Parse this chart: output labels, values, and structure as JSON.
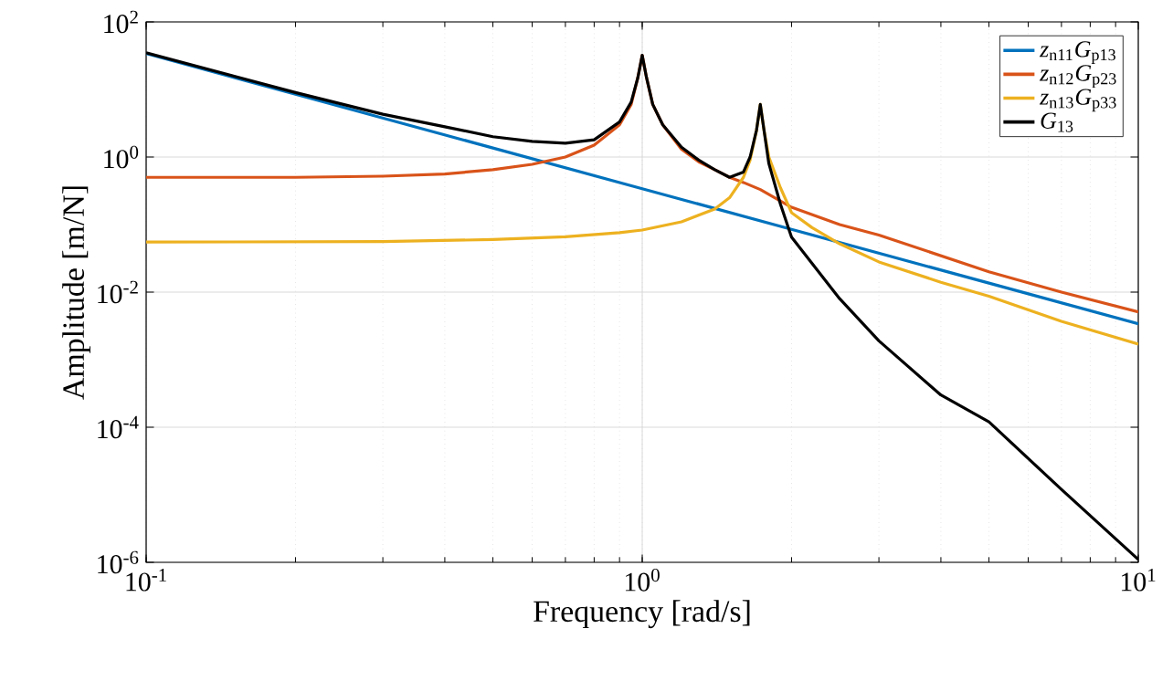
{
  "chart_data": {
    "type": "line",
    "xlabel": "Frequency [rad/s]",
    "ylabel": "Amplitude [m/N]",
    "log": "xy",
    "grid": true,
    "legend": "top right",
    "line_style": "solid",
    "marker": "none",
    "xlim": [
      0.1,
      10
    ],
    "ylim": [
      1e-06,
      100
    ],
    "xticks": [
      {
        "value": 0.1,
        "label": "10$^{-1}$"
      },
      {
        "value": 1,
        "label": "10$^{0}$"
      },
      {
        "value": 10,
        "label": "10$^{1}$"
      }
    ],
    "yticks": [
      {
        "value": 1e-06,
        "label": "10$^{-6}$"
      },
      {
        "value": 0.0001,
        "label": "10$^{-4}$"
      },
      {
        "value": 0.01,
        "label": "10$^{-2}$"
      },
      {
        "value": 1,
        "label": "10$^{0}$"
      },
      {
        "value": 100,
        "label": "10$^{2}$"
      }
    ],
    "series": [
      {
        "name": "*z*$_{n11}$*G*$_{p13}$",
        "color": "#0072bd",
        "x": [
          0.1,
          0.2,
          0.5,
          1,
          2,
          5,
          10
        ],
        "values": [
          34,
          8.5,
          1.36,
          0.34,
          0.085,
          0.0136,
          0.0034
        ]
      },
      {
        "name": "*z*$_{n12}$*G*$_{p23}$",
        "color": "#d95319",
        "x": [
          0.1,
          0.2,
          0.3,
          0.4,
          0.5,
          0.6,
          0.7,
          0.8,
          0.9,
          0.95,
          0.98,
          1.0,
          1.02,
          1.05,
          1.1,
          1.2,
          1.3,
          1.4,
          1.5,
          1.6,
          1.73,
          1.85,
          2.0,
          2.5,
          3,
          5,
          7,
          10
        ],
        "values": [
          0.5,
          0.5,
          0.52,
          0.56,
          0.65,
          0.78,
          1.0,
          1.5,
          3.0,
          6,
          15,
          32,
          15,
          6,
          3.0,
          1.3,
          0.85,
          0.65,
          0.5,
          0.42,
          0.33,
          0.25,
          0.18,
          0.1,
          0.07,
          0.02,
          0.01,
          0.0051
        ]
      },
      {
        "name": "*z*$_{n13}$*G*$_{p33}$",
        "color": "#edb120",
        "x": [
          0.1,
          0.3,
          0.5,
          0.7,
          0.9,
          1.0,
          1.2,
          1.4,
          1.5,
          1.6,
          1.65,
          1.7,
          1.73,
          1.76,
          1.8,
          1.9,
          2.0,
          2.2,
          2.5,
          3,
          4,
          5,
          7,
          10
        ],
        "values": [
          0.055,
          0.056,
          0.06,
          0.066,
          0.076,
          0.083,
          0.11,
          0.17,
          0.25,
          0.5,
          0.9,
          2.5,
          6,
          2.5,
          1.0,
          0.35,
          0.15,
          0.09,
          0.052,
          0.028,
          0.014,
          0.0087,
          0.0037,
          0.0017
        ]
      },
      {
        "name": "*G*$_{13}$",
        "color": "#000000",
        "x": [
          0.1,
          0.2,
          0.3,
          0.4,
          0.5,
          0.6,
          0.7,
          0.8,
          0.9,
          0.95,
          0.98,
          1.0,
          1.02,
          1.05,
          1.1,
          1.2,
          1.3,
          1.4,
          1.5,
          1.6,
          1.65,
          1.7,
          1.73,
          1.76,
          1.8,
          1.9,
          2.0,
          2.5,
          3,
          4,
          5,
          7,
          10
        ],
        "values": [
          35,
          9,
          4.3,
          2.8,
          2.0,
          1.7,
          1.6,
          1.8,
          3.3,
          6.5,
          15,
          32,
          15,
          6,
          3,
          1.4,
          0.9,
          0.65,
          0.5,
          0.6,
          1.0,
          2.5,
          6,
          2.5,
          0.8,
          0.2,
          0.065,
          0.008,
          0.0019,
          0.0003,
          0.00012,
          1.2e-05,
          1.1e-06
        ]
      }
    ]
  }
}
